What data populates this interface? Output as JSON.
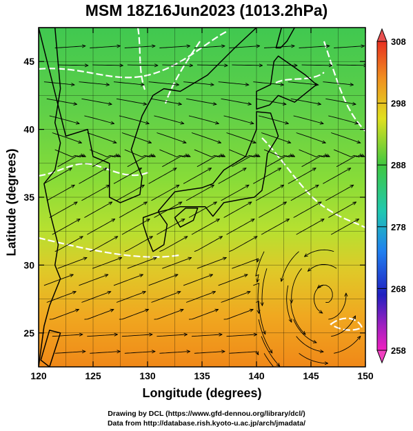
{
  "title": "MSM 18Z16Jun2023 (1013.2hPa)",
  "x_axis": {
    "label": "Longitude (degrees)",
    "range": [
      120,
      150
    ],
    "ticks": [
      "120",
      "125",
      "130",
      "135",
      "140",
      "145",
      "150"
    ]
  },
  "y_axis": {
    "label": "Latitude  (degrees)",
    "range": [
      22.5,
      47.5
    ],
    "ticks": [
      "25",
      "30",
      "35",
      "40",
      "45"
    ]
  },
  "colorbar": {
    "range": [
      258,
      308
    ],
    "ticks": [
      "308",
      "298",
      "288",
      "278",
      "268",
      "258"
    ]
  },
  "credits": {
    "line1": "Drawing by DCL (https://www.gfd-dennou.org/library/dcl/)",
    "line2": "Data from http://database.rish.kyoto-u.ac.jp/arch/jmadata/"
  },
  "colors": {
    "warm": "#f0a020",
    "mid": "#a8e040",
    "cool": "#40c850",
    "contour": "#ffffff",
    "coast": "#000000"
  }
}
